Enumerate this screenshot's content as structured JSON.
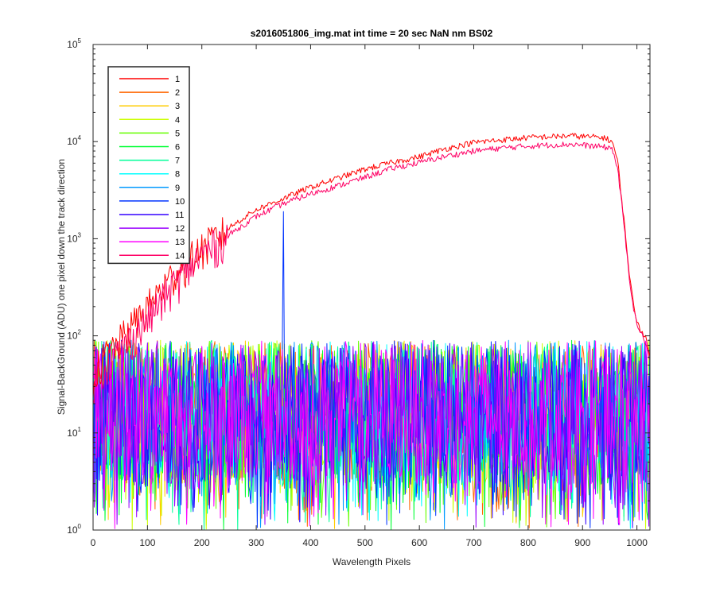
{
  "chart_data": {
    "type": "line",
    "title": "s2016051806_img.mat int time = 20 sec  NaN nm BS02",
    "xlabel": "Wavelength Pixels",
    "ylabel": "Signal-BackGround (ADU) one pixel down the track direction",
    "x_range": [
      0,
      1024
    ],
    "y_range": [
      1,
      100000
    ],
    "y_scale": "log",
    "grid": false,
    "legend_position": "top-left",
    "x_ticks": [
      "0",
      "100",
      "200",
      "300",
      "400",
      "500",
      "600",
      "700",
      "800",
      "900",
      "1000"
    ],
    "y_ticks": [
      {
        "base": "10",
        "exp": "0"
      },
      {
        "base": "10",
        "exp": "1"
      },
      {
        "base": "10",
        "exp": "2"
      },
      {
        "base": "10",
        "exp": "3"
      },
      {
        "base": "10",
        "exp": "4"
      },
      {
        "base": "10",
        "exp": "5"
      }
    ],
    "series": [
      {
        "name": "1",
        "color": "#ff0000",
        "kind": "signal",
        "values": [
          [
            0,
            40
          ],
          [
            20,
            60
          ],
          [
            50,
            90
          ],
          [
            100,
            200
          ],
          [
            150,
            450
          ],
          [
            200,
            800
          ],
          [
            250,
            1300
          ],
          [
            300,
            2000
          ],
          [
            350,
            2600
          ],
          [
            400,
            3400
          ],
          [
            450,
            4200
          ],
          [
            500,
            5200
          ],
          [
            550,
            6100
          ],
          [
            600,
            7000
          ],
          [
            650,
            8500
          ],
          [
            700,
            9800
          ],
          [
            750,
            10400
          ],
          [
            800,
            11000
          ],
          [
            850,
            11300
          ],
          [
            880,
            11500
          ],
          [
            900,
            11300
          ],
          [
            940,
            11000
          ],
          [
            955,
            10000
          ],
          [
            965,
            6000
          ],
          [
            975,
            1800
          ],
          [
            985,
            500
          ],
          [
            995,
            180
          ],
          [
            1005,
            120
          ],
          [
            1015,
            100
          ],
          [
            1024,
            60
          ]
        ]
      },
      {
        "name": "2",
        "color": "#ff6600",
        "kind": "noise",
        "values": []
      },
      {
        "name": "3",
        "color": "#ffcc00",
        "kind": "noise",
        "values": []
      },
      {
        "name": "4",
        "color": "#ccff00",
        "kind": "noise",
        "values": []
      },
      {
        "name": "5",
        "color": "#66ff00",
        "kind": "noise",
        "values": []
      },
      {
        "name": "6",
        "color": "#00ff33",
        "kind": "noise",
        "values": []
      },
      {
        "name": "7",
        "color": "#00ff99",
        "kind": "noise",
        "values": []
      },
      {
        "name": "8",
        "color": "#00ffff",
        "kind": "noise",
        "values": []
      },
      {
        "name": "9",
        "color": "#0099ff",
        "kind": "noise",
        "values": []
      },
      {
        "name": "10",
        "color": "#0033ff",
        "kind": "spike",
        "values": [
          [
            350,
            1900
          ]
        ]
      },
      {
        "name": "11",
        "color": "#3300ff",
        "kind": "noise",
        "values": []
      },
      {
        "name": "12",
        "color": "#9900ff",
        "kind": "noise",
        "values": []
      },
      {
        "name": "13",
        "color": "#ff00ff",
        "kind": "noise",
        "values": []
      },
      {
        "name": "14",
        "color": "#ff0066",
        "kind": "signal",
        "values": [
          [
            0,
            35
          ],
          [
            20,
            50
          ],
          [
            50,
            70
          ],
          [
            100,
            150
          ],
          [
            150,
            350
          ],
          [
            200,
            700
          ],
          [
            250,
            1100
          ],
          [
            300,
            1700
          ],
          [
            350,
            2300
          ],
          [
            400,
            2900
          ],
          [
            450,
            3500
          ],
          [
            500,
            4300
          ],
          [
            550,
            5300
          ],
          [
            600,
            6100
          ],
          [
            650,
            7100
          ],
          [
            700,
            8000
          ],
          [
            750,
            8600
          ],
          [
            800,
            9000
          ],
          [
            850,
            9300
          ],
          [
            880,
            9400
          ],
          [
            900,
            9200
          ],
          [
            940,
            8800
          ],
          [
            955,
            8500
          ],
          [
            965,
            5000
          ],
          [
            975,
            1600
          ],
          [
            985,
            450
          ],
          [
            995,
            170
          ],
          [
            1005,
            110
          ],
          [
            1015,
            90
          ],
          [
            1024,
            55
          ]
        ]
      }
    ],
    "noise_floor": {
      "min": 1,
      "max": 90,
      "typical": 30
    }
  }
}
